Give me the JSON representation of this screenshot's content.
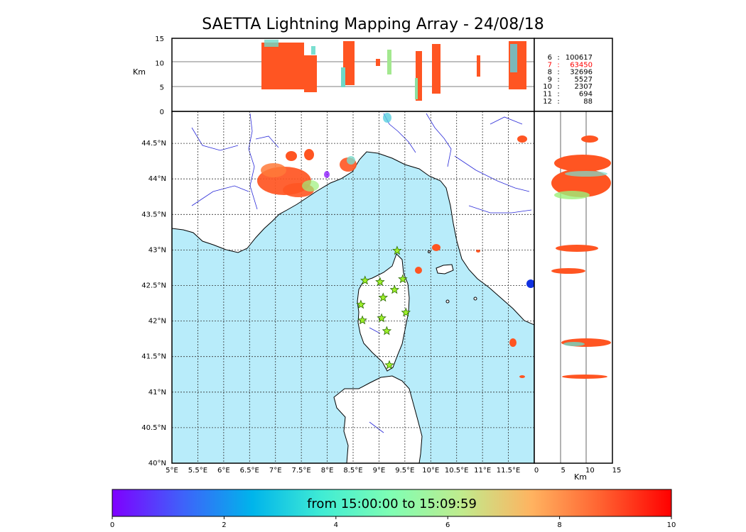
{
  "title": "SAETTA Lightning Mapping Array - 24/08/18",
  "colors": {
    "sea": "#b8ecfa",
    "land": "#ffffff",
    "coast": "#000000",
    "rivers": "#2a2ad8",
    "flash": "#ff5522",
    "station_fill": "#9ef02a",
    "station_stroke": "#2a6a00",
    "highlight_count": "#ff0000"
  },
  "altitude_panel": {
    "unit_label": "Km",
    "ticks": [
      "0",
      "5",
      "10",
      "15"
    ]
  },
  "right_panel": {
    "unit_label": "Km",
    "ticks": [
      "0",
      "5",
      "10",
      "15"
    ]
  },
  "station_counts": [
    {
      "stations": "6",
      "sep": ":",
      "count": "100617",
      "highlight": false
    },
    {
      "stations": "7",
      "sep": ":",
      "count": "63450",
      "highlight": true
    },
    {
      "stations": "8",
      "sep": ":",
      "count": "32696",
      "highlight": false
    },
    {
      "stations": "9",
      "sep": ":",
      "count": "5527",
      "highlight": false
    },
    {
      "stations": "10",
      "sep": ":",
      "count": "2307",
      "highlight": false
    },
    {
      "stations": "11",
      "sep": ":",
      "count": "694",
      "highlight": false
    },
    {
      "stations": "12",
      "sep": ":",
      "count": "88",
      "highlight": false
    }
  ],
  "map": {
    "lon_labels": [
      "5°E",
      "5.5°E",
      "6°E",
      "6.5°E",
      "7°E",
      "7.5°E",
      "8°E",
      "8.5°E",
      "9°E",
      "9.5°E",
      "10°E",
      "10.5°E",
      "11°E",
      "11.5°E"
    ],
    "lat_labels": [
      "40°N",
      "40.5°N",
      "41°N",
      "41.5°N",
      "42°N",
      "42.5°N",
      "43°N",
      "43.5°N",
      "44°N",
      "44.5°N"
    ],
    "lat_values": [
      40,
      40.5,
      41,
      41.5,
      42,
      42.5,
      43,
      43.5,
      44,
      44.5
    ],
    "lon_values": [
      5,
      5.5,
      6,
      6.5,
      7,
      7.5,
      8,
      8.5,
      9,
      9.5,
      10,
      10.5,
      11,
      11.5
    ],
    "lon_range": [
      5,
      12
    ],
    "lat_range": [
      40,
      44.95
    ],
    "stations": [
      {
        "lon": 8.73,
        "lat": 42.57
      },
      {
        "lon": 9.02,
        "lat": 42.55
      },
      {
        "lon": 9.35,
        "lat": 42.99
      },
      {
        "lon": 9.46,
        "lat": 42.59
      },
      {
        "lon": 9.3,
        "lat": 42.44
      },
      {
        "lon": 8.65,
        "lat": 42.23
      },
      {
        "lon": 9.08,
        "lat": 42.33
      },
      {
        "lon": 9.52,
        "lat": 42.12
      },
      {
        "lon": 8.68,
        "lat": 42.01
      },
      {
        "lon": 9.05,
        "lat": 42.04
      },
      {
        "lon": 9.15,
        "lat": 41.86
      },
      {
        "lon": 9.2,
        "lat": 41.38
      }
    ]
  },
  "colorbar": {
    "ticks": [
      "0",
      "2",
      "4",
      "6",
      "8",
      "10"
    ],
    "range": [
      0,
      10
    ],
    "label": "from 15:00:00 to 15:09:59",
    "colors": [
      "#7f00ff",
      "#3f61fa",
      "#00b4eb",
      "#40ecd4",
      "#80feb3",
      "#c0eb8d",
      "#ffb360",
      "#ff6130",
      "#ff0000"
    ]
  }
}
